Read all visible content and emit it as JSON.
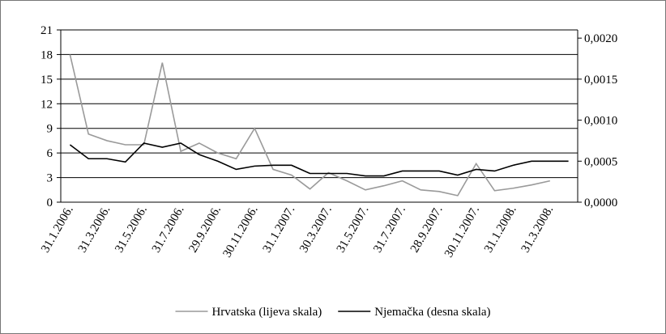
{
  "chart_data": {
    "type": "line",
    "categories": [
      "31.1.2006.",
      null,
      "31.3.2006.",
      null,
      "31.5.2006.",
      null,
      "31.7.2006.",
      null,
      "29.9.2006.",
      null,
      "30.11.2006.",
      null,
      "31.1.2007.",
      null,
      "30.3.2007.",
      null,
      "31.5.2007.",
      null,
      "31.7.2007.",
      null,
      "28.9.2007.",
      null,
      "30.11.2007.",
      null,
      "31.1.2008.",
      null,
      "31.3.2008.",
      null
    ],
    "series": [
      {
        "name": "Hrvatska (lijeva skala)",
        "color": "#9a9a9a",
        "values": [
          18,
          8.3,
          7.5,
          7.0,
          7.0,
          17,
          6.2,
          7.2,
          6.0,
          5.3,
          9.0,
          4.0,
          3.3,
          1.6,
          3.6,
          2.6,
          1.5,
          2.0,
          2.6,
          1.5,
          1.3,
          0.8,
          4.7,
          1.4,
          1.7,
          2.1,
          2.6,
          null
        ]
      },
      {
        "name": "Njemačka (desna skala)",
        "color": "#000000",
        "axis": "y2",
        "values": [
          0.0007,
          0.00053,
          0.00053,
          0.00049,
          0.00072,
          0.00067,
          0.00072,
          0.00058,
          0.0005,
          0.0004,
          0.00044,
          0.00045,
          0.00045,
          0.00035,
          0.00035,
          0.00035,
          0.00032,
          0.00032,
          0.00038,
          0.00038,
          0.00038,
          0.00033,
          0.0004,
          0.00038,
          0.00045,
          0.0005,
          0.0005,
          0.0005
        ]
      }
    ],
    "ylim": [
      0,
      21
    ],
    "yticks": [
      0,
      3,
      6,
      9,
      12,
      15,
      18,
      21
    ],
    "y2lim": [
      0,
      0.0021
    ],
    "y2ticks": [
      {
        "value": 0,
        "label": "0,0000"
      },
      {
        "value": 0.0005,
        "label": "0,0005"
      },
      {
        "value": 0.001,
        "label": "0,0010"
      },
      {
        "value": 0.0015,
        "label": "0,0015"
      },
      {
        "value": 0.002,
        "label": "0,0020"
      }
    ],
    "grid": true,
    "legend": "bottom"
  }
}
